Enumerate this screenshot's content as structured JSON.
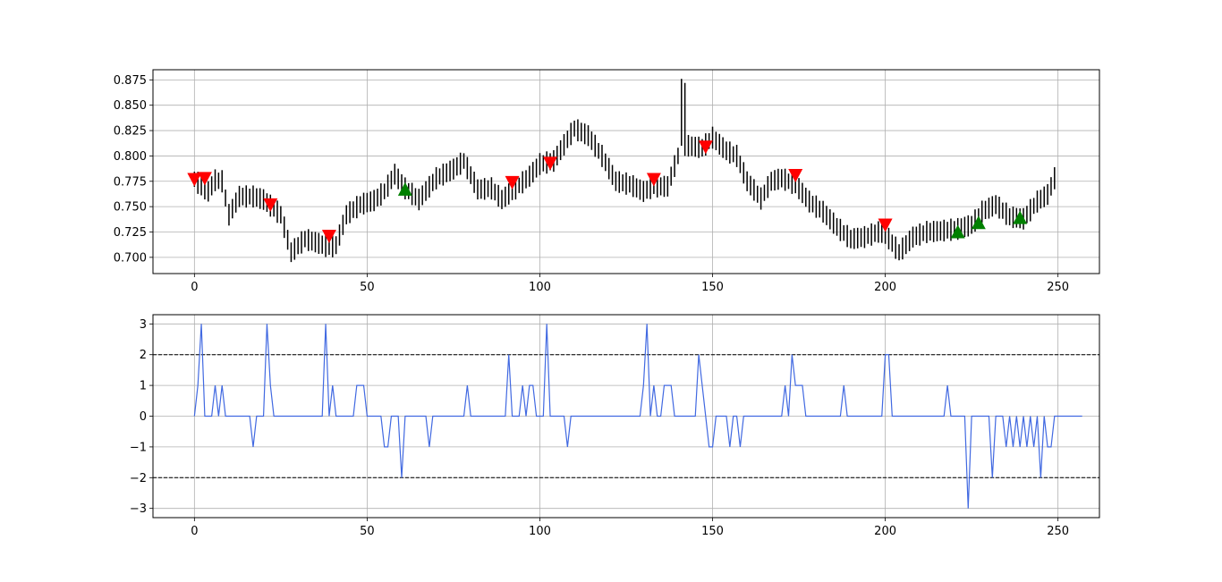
{
  "chart_data": [
    {
      "type": "ohlc",
      "title": "",
      "xlabel": "",
      "ylabel": "",
      "xlim": [
        -12,
        262
      ],
      "ylim": [
        0.684,
        0.885
      ],
      "grid": true,
      "xticks": [
        0,
        50,
        100,
        150,
        200,
        250
      ],
      "yticks": [
        0.7,
        0.725,
        0.75,
        0.775,
        0.8,
        0.825,
        0.85,
        0.875
      ],
      "bar_color": "#000000",
      "anchors": [
        [
          0,
          0.777
        ],
        [
          2,
          0.77
        ],
        [
          4,
          0.765
        ],
        [
          6,
          0.776
        ],
        [
          8,
          0.775
        ],
        [
          10,
          0.742
        ],
        [
          13,
          0.76
        ],
        [
          17,
          0.76
        ],
        [
          20,
          0.757
        ],
        [
          22,
          0.751
        ],
        [
          25,
          0.742
        ],
        [
          28,
          0.705
        ],
        [
          32,
          0.718
        ],
        [
          35,
          0.715
        ],
        [
          39,
          0.71
        ],
        [
          41,
          0.712
        ],
        [
          44,
          0.742
        ],
        [
          48,
          0.752
        ],
        [
          52,
          0.756
        ],
        [
          55,
          0.765
        ],
        [
          58,
          0.782
        ],
        [
          61,
          0.768
        ],
        [
          65,
          0.757
        ],
        [
          70,
          0.778
        ],
        [
          75,
          0.787
        ],
        [
          78,
          0.795
        ],
        [
          82,
          0.767
        ],
        [
          86,
          0.768
        ],
        [
          89,
          0.757
        ],
        [
          93,
          0.768
        ],
        [
          97,
          0.78
        ],
        [
          100,
          0.792
        ],
        [
          104,
          0.795
        ],
        [
          110,
          0.827
        ],
        [
          114,
          0.82
        ],
        [
          118,
          0.8
        ],
        [
          122,
          0.775
        ],
        [
          126,
          0.772
        ],
        [
          130,
          0.765
        ],
        [
          133,
          0.77
        ],
        [
          137,
          0.77
        ],
        [
          140,
          0.8
        ],
        [
          141,
          0.85
        ],
        [
          143,
          0.81
        ],
        [
          147,
          0.808
        ],
        [
          150,
          0.818
        ],
        [
          154,
          0.805
        ],
        [
          157,
          0.8
        ],
        [
          160,
          0.775
        ],
        [
          164,
          0.758
        ],
        [
          167,
          0.775
        ],
        [
          170,
          0.778
        ],
        [
          174,
          0.772
        ],
        [
          178,
          0.755
        ],
        [
          182,
          0.745
        ],
        [
          186,
          0.73
        ],
        [
          190,
          0.718
        ],
        [
          194,
          0.72
        ],
        [
          198,
          0.725
        ],
        [
          200,
          0.723
        ],
        [
          204,
          0.705
        ],
        [
          208,
          0.72
        ],
        [
          212,
          0.725
        ],
        [
          216,
          0.726
        ],
        [
          221,
          0.728
        ],
        [
          225,
          0.732
        ],
        [
          228,
          0.745
        ],
        [
          232,
          0.752
        ],
        [
          236,
          0.74
        ],
        [
          240,
          0.738
        ],
        [
          244,
          0.755
        ],
        [
          247,
          0.762
        ],
        [
          249,
          0.778
        ]
      ],
      "markers_down": [
        {
          "x": 0,
          "y": 0.777
        },
        {
          "x": 3,
          "y": 0.778
        },
        {
          "x": 22,
          "y": 0.752
        },
        {
          "x": 39,
          "y": 0.721
        },
        {
          "x": 92,
          "y": 0.774
        },
        {
          "x": 103,
          "y": 0.793
        },
        {
          "x": 133,
          "y": 0.777
        },
        {
          "x": 148,
          "y": 0.809
        },
        {
          "x": 174,
          "y": 0.781
        },
        {
          "x": 200,
          "y": 0.732
        }
      ],
      "markers_up": [
        {
          "x": 61,
          "y": 0.767
        },
        {
          "x": 221,
          "y": 0.725
        },
        {
          "x": 227,
          "y": 0.734
        },
        {
          "x": 239,
          "y": 0.739
        }
      ],
      "marker_down_color": "#ff0000",
      "marker_up_color": "#008000"
    },
    {
      "type": "line",
      "title": "",
      "xlabel": "",
      "ylabel": "",
      "xlim": [
        -12,
        262
      ],
      "ylim": [
        -3.3,
        3.3
      ],
      "grid": true,
      "xticks": [
        0,
        50,
        100,
        150,
        200,
        250
      ],
      "yticks": [
        -3,
        -2,
        -1,
        0,
        1,
        2,
        3
      ],
      "line_color": "#4169e1",
      "hlines": [
        2,
        -2
      ],
      "hline_color": "#000000",
      "series": [
        {
          "values": [
            0,
            1,
            3,
            0,
            0,
            0,
            1,
            0,
            1,
            0,
            0,
            0,
            0,
            0,
            0,
            0,
            0,
            -1,
            0,
            0,
            0,
            3,
            1,
            0,
            0,
            0,
            0,
            0,
            0,
            0,
            0,
            0,
            0,
            0,
            0,
            0,
            0,
            0,
            3,
            0,
            1,
            0,
            0,
            0,
            0,
            0,
            0,
            1,
            1,
            1,
            0,
            0,
            0,
            0,
            0,
            -1,
            -1,
            0,
            0,
            0,
            -2,
            0,
            0,
            0,
            0,
            0,
            0,
            0,
            -1,
            0,
            0,
            0,
            0,
            0,
            0,
            0,
            0,
            0,
            0,
            1,
            0,
            0,
            0,
            0,
            0,
            0,
            0,
            0,
            0,
            0,
            0,
            2,
            0,
            0,
            0,
            1,
            0,
            1,
            1,
            0,
            0,
            0,
            3,
            0,
            0,
            0,
            0,
            0,
            -1,
            0,
            0,
            0,
            0,
            0,
            0,
            0,
            0,
            0,
            0,
            0,
            0,
            0,
            0,
            0,
            0,
            0,
            0,
            0,
            0,
            0,
            1,
            3,
            0,
            1,
            0,
            0,
            1,
            1,
            1,
            0,
            0,
            0,
            0,
            0,
            0,
            0,
            2,
            1,
            0,
            -1,
            -1,
            0,
            0,
            0,
            0,
            -1,
            0,
            0,
            -1,
            0,
            0,
            0,
            0,
            0,
            0,
            0,
            0,
            0,
            0,
            0,
            0,
            1,
            0,
            2,
            1,
            1,
            1,
            0,
            0,
            0,
            0,
            0,
            0,
            0,
            0,
            0,
            0,
            0,
            1,
            0,
            0,
            0,
            0,
            0,
            0,
            0,
            0,
            0,
            0,
            0,
            2,
            2,
            0,
            0,
            0,
            0,
            0,
            0,
            0,
            0,
            0,
            0,
            0,
            0,
            0,
            0,
            0,
            0,
            1,
            0,
            0,
            0,
            0,
            0,
            -3,
            0,
            0,
            0,
            0,
            0,
            0,
            -2,
            0,
            0,
            0,
            -1,
            0,
            -1,
            0,
            -1,
            0,
            -1,
            0,
            -1,
            0,
            -2,
            0,
            -1,
            -1,
            0,
            0,
            0,
            0,
            0,
            0,
            0,
            0,
            0
          ]
        }
      ]
    }
  ]
}
